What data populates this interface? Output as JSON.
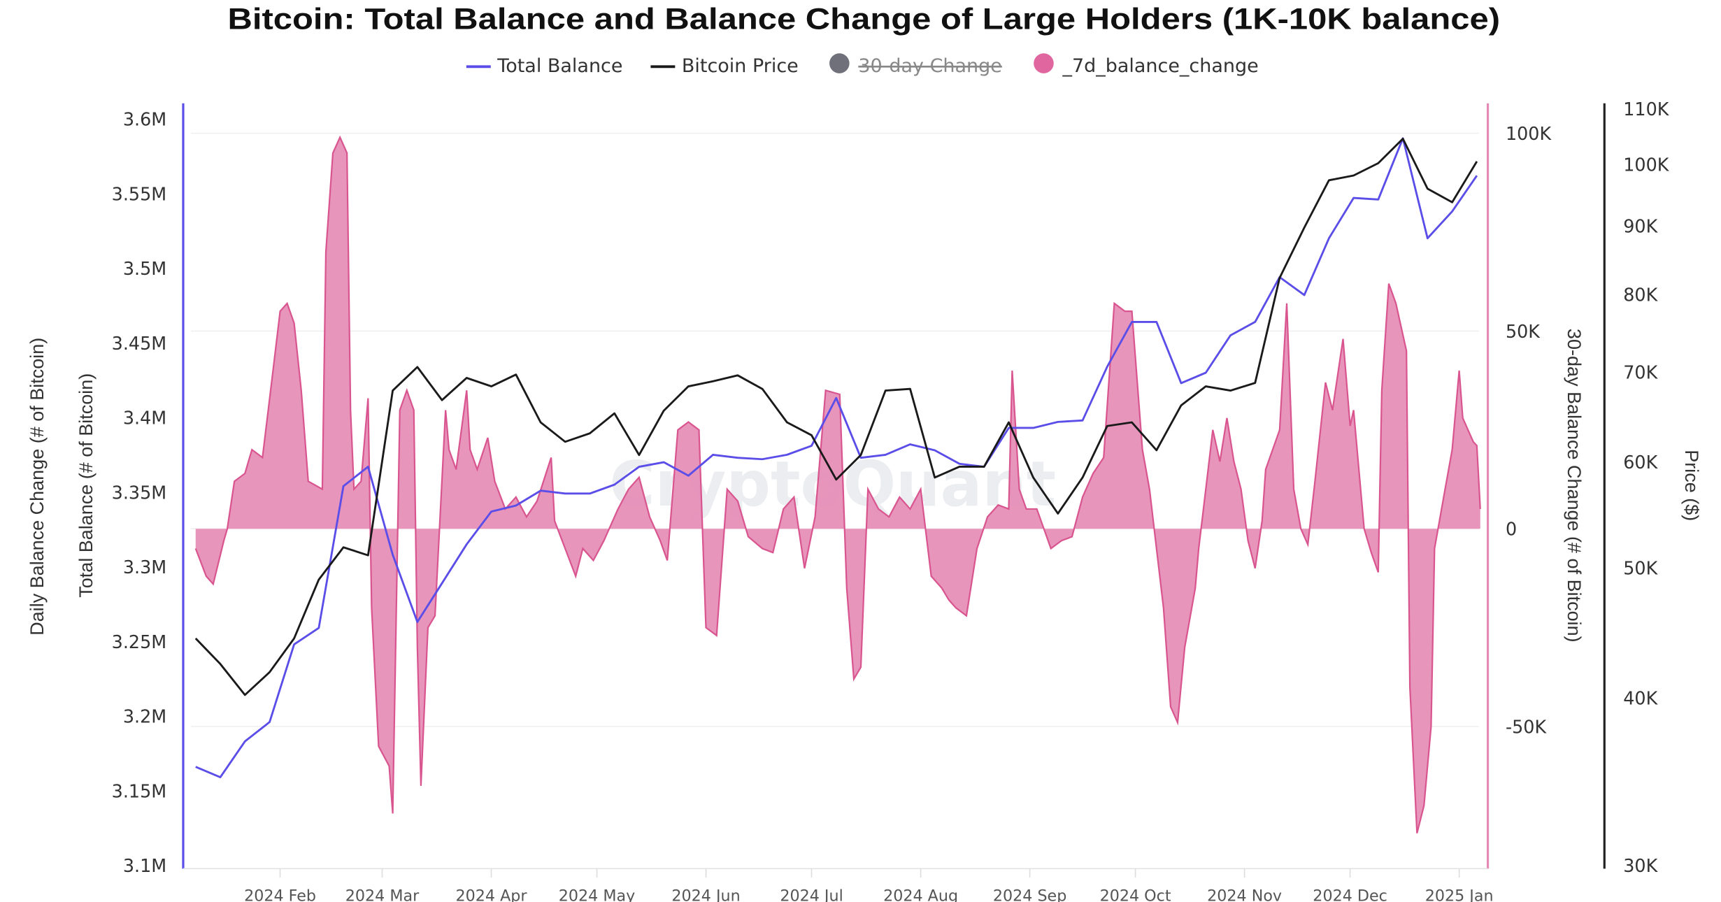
{
  "chart_data": {
    "type": "line",
    "title": "Bitcoin: Total Balance and Balance Change of Large Holders (1K-10K balance)",
    "watermark": "CryptoQuant",
    "legend": [
      {
        "label": "Total Balance",
        "color": "#5b4ee8",
        "marker": "line",
        "hidden": false
      },
      {
        "label": "Bitcoin Price",
        "color": "#1a1a1a",
        "marker": "line",
        "hidden": false
      },
      {
        "label": "30-day Change",
        "color": "#70707a",
        "marker": "circle",
        "hidden": true
      },
      {
        "label": "_7d_balance_change",
        "color": "#e0669f",
        "marker": "circle",
        "hidden": false
      }
    ],
    "x_axis": {
      "type": "date",
      "range": [
        "2024-01-07",
        "2025-01-07"
      ],
      "ticks": [
        {
          "date": "2024-02-01",
          "label": "2024 Feb"
        },
        {
          "date": "2024-03-01",
          "label": "2024 Mar"
        },
        {
          "date": "2024-04-01",
          "label": "2024 Apr"
        },
        {
          "date": "2024-05-01",
          "label": "2024 May"
        },
        {
          "date": "2024-06-01",
          "label": "2024 Jun"
        },
        {
          "date": "2024-07-01",
          "label": "2024 Jul"
        },
        {
          "date": "2024-08-01",
          "label": "2024 Aug"
        },
        {
          "date": "2024-09-01",
          "label": "2024 Sep"
        },
        {
          "date": "2024-10-01",
          "label": "2024 Oct"
        },
        {
          "date": "2024-11-01",
          "label": "2024 Nov"
        },
        {
          "date": "2024-12-01",
          "label": "2024 Dec"
        },
        {
          "date": "2025-01-01",
          "label": "2025 Jan"
        }
      ]
    },
    "y_left": {
      "label": "Total Balance (# of Bitcoin)",
      "outer_label": "Daily Balance Change (# of Bitcoin)",
      "color": "#5b4ee8",
      "range": [
        3100000,
        3600000
      ],
      "ticks": [
        {
          "value": 3600000,
          "label": "3.6M"
        },
        {
          "value": 3550000,
          "label": "3.55M"
        },
        {
          "value": 3500000,
          "label": "3.5M"
        },
        {
          "value": 3450000,
          "label": "3.45M"
        },
        {
          "value": 3400000,
          "label": "3.4M"
        },
        {
          "value": 3350000,
          "label": "3.35M"
        },
        {
          "value": 3300000,
          "label": "3.3M"
        },
        {
          "value": 3250000,
          "label": "3.25M"
        },
        {
          "value": 3200000,
          "label": "3.2M"
        },
        {
          "value": 3150000,
          "label": "3.15M"
        },
        {
          "value": 3100000,
          "label": "3.1M"
        }
      ]
    },
    "y_right_change": {
      "label": "30-day Balance Change (# of Bitcoin)",
      "color": "#e0669f",
      "range": [
        -86000,
        107000
      ],
      "grid": true,
      "ticks": [
        {
          "value": 100000,
          "label": "100K"
        },
        {
          "value": 50000,
          "label": "50K"
        },
        {
          "value": 0,
          "label": "0"
        },
        {
          "value": -50000,
          "label": "-50K"
        }
      ]
    },
    "y_right_price": {
      "label": "Price ($)",
      "scale": "log",
      "color": "#1a1a1a",
      "range": [
        30000,
        110000
      ],
      "ticks": [
        {
          "value": 110000,
          "label": "110K"
        },
        {
          "value": 100000,
          "label": "100K"
        },
        {
          "value": 90000,
          "label": "90K"
        },
        {
          "value": 80000,
          "label": "80K"
        },
        {
          "value": 70000,
          "label": "70K"
        },
        {
          "value": 60000,
          "label": "60K"
        },
        {
          "value": 50000,
          "label": "50K"
        },
        {
          "value": 40000,
          "label": "40K"
        },
        {
          "value": 30000,
          "label": "30K"
        }
      ]
    },
    "weekly_dates": [
      "2024-01-08",
      "2024-01-15",
      "2024-01-22",
      "2024-01-29",
      "2024-02-05",
      "2024-02-12",
      "2024-02-19",
      "2024-02-26",
      "2024-03-04",
      "2024-03-11",
      "2024-03-18",
      "2024-03-25",
      "2024-04-01",
      "2024-04-08",
      "2024-04-15",
      "2024-04-22",
      "2024-04-29",
      "2024-05-06",
      "2024-05-13",
      "2024-05-20",
      "2024-05-27",
      "2024-06-03",
      "2024-06-10",
      "2024-06-17",
      "2024-06-24",
      "2024-07-01",
      "2024-07-08",
      "2024-07-15",
      "2024-07-22",
      "2024-07-29",
      "2024-08-05",
      "2024-08-12",
      "2024-08-19",
      "2024-08-26",
      "2024-09-02",
      "2024-09-09",
      "2024-09-16",
      "2024-09-23",
      "2024-09-30",
      "2024-10-07",
      "2024-10-14",
      "2024-10-21",
      "2024-10-28",
      "2024-11-04",
      "2024-11-11",
      "2024-11-18",
      "2024-11-25",
      "2024-12-02",
      "2024-12-09",
      "2024-12-16",
      "2024-12-23",
      "2024-12-30",
      "2025-01-06"
    ],
    "series": [
      {
        "name": "Total Balance",
        "axis": "y_left",
        "values": [
          3166000,
          3159000,
          3183000,
          3196000,
          3248000,
          3259000,
          3354000,
          3367000,
          3308000,
          3263000,
          3289000,
          3315000,
          3337000,
          3341000,
          3351000,
          3349000,
          3349000,
          3355000,
          3367000,
          3370000,
          3361000,
          3375000,
          3373000,
          3372000,
          3375000,
          3381000,
          3413000,
          3373000,
          3375000,
          3382000,
          3378000,
          3369000,
          3367000,
          3393000,
          3393000,
          3397000,
          3398000,
          3434000,
          3464000,
          3464000,
          3423000,
          3430000,
          3455000,
          3464000,
          3494000,
          3482000,
          3520000,
          3547000,
          3546000,
          3587000,
          3520000,
          3538000,
          3562000
        ]
      },
      {
        "name": "Bitcoin Price",
        "axis": "y_right_price",
        "values": [
          44300,
          42400,
          40200,
          41800,
          44300,
          49000,
          51800,
          51100,
          67800,
          70600,
          66700,
          69300,
          68300,
          69700,
          64200,
          62100,
          63000,
          65200,
          60700,
          65500,
          68300,
          68900,
          69600,
          68000,
          64200,
          62800,
          58200,
          60700,
          67800,
          68000,
          58400,
          59500,
          59500,
          64200,
          58400,
          54900,
          58400,
          63800,
          64200,
          61200,
          66100,
          68300,
          67800,
          68700,
          82300,
          89700,
          97300,
          98100,
          100200,
          104500,
          95900,
          93700,
          100500
        ]
      },
      {
        "name": "_7d_balance_change",
        "axis": "y_right_change",
        "style": "area",
        "points": [
          [
            "2024-01-08",
            -5000
          ],
          [
            "2024-01-11",
            -12000
          ],
          [
            "2024-01-13",
            -14000
          ],
          [
            "2024-01-16",
            -3000
          ],
          [
            "2024-01-17",
            0
          ],
          [
            "2024-01-19",
            12000
          ],
          [
            "2024-01-22",
            14000
          ],
          [
            "2024-01-24",
            20000
          ],
          [
            "2024-01-27",
            18000
          ],
          [
            "2024-01-30",
            40000
          ],
          [
            "2024-02-01",
            55000
          ],
          [
            "2024-02-03",
            57000
          ],
          [
            "2024-02-05",
            52000
          ],
          [
            "2024-02-07",
            35000
          ],
          [
            "2024-02-09",
            12000
          ],
          [
            "2024-02-13",
            10000
          ],
          [
            "2024-02-14",
            70000
          ],
          [
            "2024-02-16",
            95000
          ],
          [
            "2024-02-18",
            99000
          ],
          [
            "2024-02-20",
            95000
          ],
          [
            "2024-02-21",
            30000
          ],
          [
            "2024-02-22",
            10000
          ],
          [
            "2024-02-24",
            12000
          ],
          [
            "2024-02-26",
            33000
          ],
          [
            "2024-02-27",
            -20000
          ],
          [
            "2024-02-29",
            -55000
          ],
          [
            "2024-03-03",
            -60000
          ],
          [
            "2024-03-04",
            -72000
          ],
          [
            "2024-03-06",
            30000
          ],
          [
            "2024-03-08",
            35000
          ],
          [
            "2024-03-10",
            30000
          ],
          [
            "2024-03-11",
            -30000
          ],
          [
            "2024-03-12",
            -65000
          ],
          [
            "2024-03-14",
            -25000
          ],
          [
            "2024-03-16",
            -22000
          ],
          [
            "2024-03-19",
            30000
          ],
          [
            "2024-03-20",
            20000
          ],
          [
            "2024-03-22",
            15000
          ],
          [
            "2024-03-25",
            35000
          ],
          [
            "2024-03-26",
            20000
          ],
          [
            "2024-03-28",
            15000
          ],
          [
            "2024-03-31",
            23000
          ],
          [
            "2024-04-02",
            12000
          ],
          [
            "2024-04-05",
            5000
          ],
          [
            "2024-04-08",
            8000
          ],
          [
            "2024-04-11",
            3000
          ],
          [
            "2024-04-14",
            7000
          ],
          [
            "2024-04-18",
            18000
          ],
          [
            "2024-04-19",
            2000
          ],
          [
            "2024-04-22",
            -5000
          ],
          [
            "2024-04-25",
            -12000
          ],
          [
            "2024-04-27",
            -5000
          ],
          [
            "2024-04-30",
            -8000
          ],
          [
            "2024-05-03",
            -3000
          ],
          [
            "2024-05-07",
            5000
          ],
          [
            "2024-05-10",
            10000
          ],
          [
            "2024-05-13",
            13000
          ],
          [
            "2024-05-16",
            3000
          ],
          [
            "2024-05-19",
            -3000
          ],
          [
            "2024-05-21",
            -8000
          ],
          [
            "2024-05-24",
            25000
          ],
          [
            "2024-05-27",
            27000
          ],
          [
            "2024-05-30",
            25000
          ],
          [
            "2024-06-01",
            -25000
          ],
          [
            "2024-06-04",
            -27000
          ],
          [
            "2024-06-07",
            10000
          ],
          [
            "2024-06-10",
            7000
          ],
          [
            "2024-06-13",
            -2000
          ],
          [
            "2024-06-17",
            -5000
          ],
          [
            "2024-06-20",
            -6000
          ],
          [
            "2024-06-23",
            5000
          ],
          [
            "2024-06-26",
            8000
          ],
          [
            "2024-06-29",
            -10000
          ],
          [
            "2024-07-02",
            3000
          ],
          [
            "2024-07-05",
            35000
          ],
          [
            "2024-07-09",
            34000
          ],
          [
            "2024-07-11",
            -15000
          ],
          [
            "2024-07-13",
            -38000
          ],
          [
            "2024-07-15",
            -35000
          ],
          [
            "2024-07-17",
            10000
          ],
          [
            "2024-07-20",
            5000
          ],
          [
            "2024-07-23",
            3000
          ],
          [
            "2024-07-26",
            8000
          ],
          [
            "2024-07-29",
            5000
          ],
          [
            "2024-08-01",
            10000
          ],
          [
            "2024-08-04",
            -12000
          ],
          [
            "2024-08-07",
            -15000
          ],
          [
            "2024-08-09",
            -18000
          ],
          [
            "2024-08-11",
            -20000
          ],
          [
            "2024-08-14",
            -22000
          ],
          [
            "2024-08-17",
            -5000
          ],
          [
            "2024-08-20",
            3000
          ],
          [
            "2024-08-23",
            6000
          ],
          [
            "2024-08-26",
            5000
          ],
          [
            "2024-08-27",
            40000
          ],
          [
            "2024-08-29",
            10000
          ],
          [
            "2024-08-31",
            5000
          ],
          [
            "2024-09-03",
            5000
          ],
          [
            "2024-09-07",
            -5000
          ],
          [
            "2024-09-10",
            -3000
          ],
          [
            "2024-09-13",
            -2000
          ],
          [
            "2024-09-16",
            8000
          ],
          [
            "2024-09-19",
            14000
          ],
          [
            "2024-09-22",
            18000
          ],
          [
            "2024-09-25",
            57000
          ],
          [
            "2024-09-28",
            55000
          ],
          [
            "2024-09-30",
            55000
          ],
          [
            "2024-10-03",
            20000
          ],
          [
            "2024-10-05",
            10000
          ],
          [
            "2024-10-07",
            -5000
          ],
          [
            "2024-10-09",
            -20000
          ],
          [
            "2024-10-11",
            -45000
          ],
          [
            "2024-10-13",
            -49000
          ],
          [
            "2024-10-15",
            -30000
          ],
          [
            "2024-10-18",
            -15000
          ],
          [
            "2024-10-19",
            -5000
          ],
          [
            "2024-10-21",
            10000
          ],
          [
            "2024-10-23",
            25000
          ],
          [
            "2024-10-25",
            17000
          ],
          [
            "2024-10-27",
            28000
          ],
          [
            "2024-10-29",
            17000
          ],
          [
            "2024-10-31",
            10000
          ],
          [
            "2024-11-02",
            -3000
          ],
          [
            "2024-11-04",
            -10000
          ],
          [
            "2024-11-06",
            2000
          ],
          [
            "2024-11-07",
            15000
          ],
          [
            "2024-11-09",
            20000
          ],
          [
            "2024-11-11",
            25000
          ],
          [
            "2024-11-13",
            57000
          ],
          [
            "2024-11-15",
            10000
          ],
          [
            "2024-11-17",
            0
          ],
          [
            "2024-11-19",
            -4000
          ],
          [
            "2024-11-21",
            12000
          ],
          [
            "2024-11-24",
            37000
          ],
          [
            "2024-11-26",
            30000
          ],
          [
            "2024-11-29",
            48000
          ],
          [
            "2024-12-01",
            26000
          ],
          [
            "2024-12-02",
            30000
          ],
          [
            "2024-12-05",
            0
          ],
          [
            "2024-12-07",
            -6000
          ],
          [
            "2024-12-09",
            -11000
          ],
          [
            "2024-12-10",
            35000
          ],
          [
            "2024-12-12",
            62000
          ],
          [
            "2024-12-14",
            57000
          ],
          [
            "2024-12-17",
            45000
          ],
          [
            "2024-12-18",
            -40000
          ],
          [
            "2024-12-20",
            -77000
          ],
          [
            "2024-12-22",
            -70000
          ],
          [
            "2024-12-24",
            -50000
          ],
          [
            "2024-12-25",
            -5000
          ],
          [
            "2024-12-28",
            10000
          ],
          [
            "2024-12-30",
            20000
          ],
          [
            "2025-01-01",
            40000
          ],
          [
            "2025-01-02",
            28000
          ],
          [
            "2025-01-05",
            22000
          ],
          [
            "2025-01-06",
            21000
          ],
          [
            "2025-01-07",
            5000
          ]
        ]
      }
    ]
  }
}
